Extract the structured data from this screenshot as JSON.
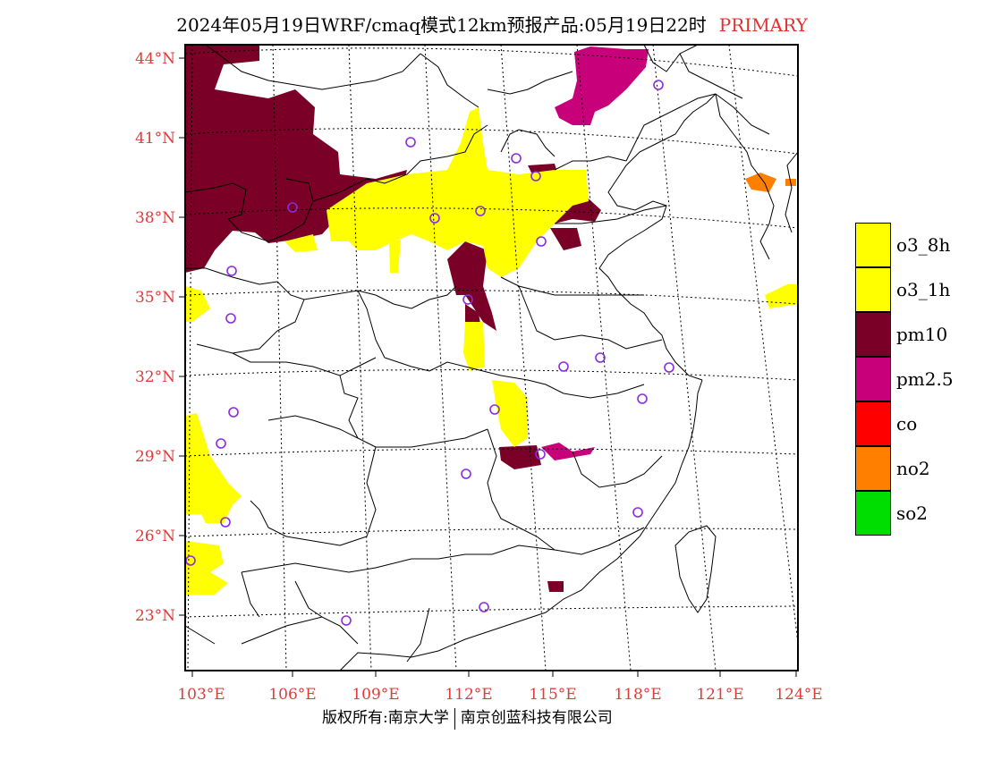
{
  "title": {
    "main": "2024年05月19日WRF/cmaq模式12km预报产品:05月19日22时",
    "variable": "PRIMARY"
  },
  "colors": {
    "o3_8h": "#ffff00",
    "o3_1h": "#ffff00",
    "pm10": "#7a0028",
    "pm25": "#c8007a",
    "co": "#ff0000",
    "no2": "#ff8000",
    "so2": "#00dd00",
    "axis_label": "#e03a3a",
    "station": "#8a2be2"
  },
  "legend": [
    {
      "label": "o3_8h",
      "color": "#ffff00"
    },
    {
      "label": "o3_1h",
      "color": "#ffff00"
    },
    {
      "label": "pm10",
      "color": "#7a0028"
    },
    {
      "label": "pm2.5",
      "color": "#c8007a"
    },
    {
      "label": "co",
      "color": "#ff0000"
    },
    {
      "label": "no2",
      "color": "#ff8000"
    },
    {
      "label": "so2",
      "color": "#00dd00"
    }
  ],
  "lat_labels": [
    "44°N",
    "41°N",
    "38°N",
    "35°N",
    "32°N",
    "29°N",
    "26°N",
    "23°N"
  ],
  "lon_labels": [
    "103°E",
    "106°E",
    "109°E",
    "112°E",
    "115°E",
    "118°E",
    "121°E",
    "124°E"
  ],
  "footer": {
    "left": "版权所有:南京大学",
    "right": "南京创蓝科技有限公司"
  }
}
